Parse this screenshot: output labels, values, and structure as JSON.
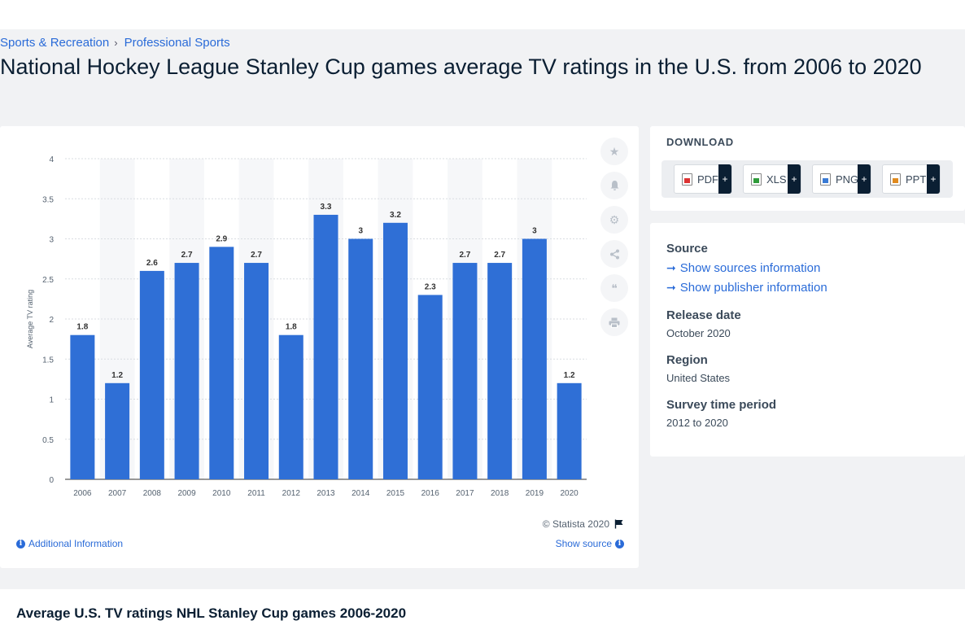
{
  "breadcrumb": [
    "Sports & Recreation",
    "Professional Sports"
  ],
  "title": "National Hockey League Stanley Cup games average TV ratings in the U.S. from 2006 to 2020",
  "chart_data": {
    "type": "bar",
    "categories": [
      "2006",
      "2007",
      "2008",
      "2009",
      "2010",
      "2011",
      "2012",
      "2013",
      "2014",
      "2015",
      "2016",
      "2017",
      "2018",
      "2019",
      "2020"
    ],
    "values": [
      1.8,
      1.2,
      2.6,
      2.7,
      2.9,
      2.7,
      1.8,
      3.3,
      3,
      3.2,
      2.3,
      2.7,
      2.7,
      3,
      1.2
    ],
    "data_labels": [
      "1.8",
      "1.2",
      "2.6",
      "2.7",
      "2.9",
      "2.7",
      "1.8",
      "3.3",
      "3",
      "3.2",
      "2.3",
      "2.7",
      "2.7",
      "3",
      "1.2"
    ],
    "ylabel": "Average TV rating",
    "xlabel": "",
    "ylim": [
      0,
      4
    ],
    "yticks": [
      "0",
      "0.5",
      "1",
      "1.5",
      "2",
      "2.5",
      "3",
      "3.5",
      "4"
    ],
    "grid": true,
    "bar_color": "#2f6fd6"
  },
  "chart_footer": {
    "credit": "© Statista 2020",
    "additional_info": "Additional Information",
    "show_source": "Show source"
  },
  "download": {
    "heading": "DOWNLOAD",
    "buttons": [
      "PDF",
      "XLS",
      "PNG",
      "PPT"
    ],
    "plus": "+"
  },
  "info": {
    "source_label": "Source",
    "show_sources": "Show sources information",
    "show_publisher": "Show publisher information",
    "release_label": "Release date",
    "release_value": "October 2020",
    "region_label": "Region",
    "region_value": "United States",
    "survey_label": "Survey time period",
    "survey_value": "2012 to 2020"
  },
  "bottom": {
    "title": "Average U.S. TV ratings NHL Stanley Cup games 2006-2020"
  },
  "tools": [
    "star-icon",
    "bell-icon",
    "gear-icon",
    "share-icon",
    "quote-icon",
    "print-icon"
  ]
}
